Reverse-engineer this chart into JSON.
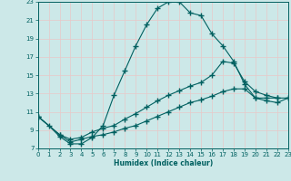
{
  "xlabel": "Humidex (Indice chaleur)",
  "bg_color": "#cce8e8",
  "grid_color": "#f0f0f0",
  "line_color": "#006060",
  "xlim": [
    0,
    23
  ],
  "ylim": [
    7,
    23
  ],
  "xticks": [
    0,
    1,
    2,
    3,
    4,
    5,
    6,
    7,
    8,
    9,
    10,
    11,
    12,
    13,
    14,
    15,
    16,
    17,
    18,
    19,
    20,
    21,
    22,
    23
  ],
  "yticks": [
    7,
    9,
    11,
    13,
    15,
    17,
    19,
    21,
    23
  ],
  "line1_x": [
    0,
    1,
    2,
    3,
    4,
    5,
    6,
    7,
    8,
    9,
    10,
    11,
    12,
    13,
    14,
    15,
    16,
    17,
    18,
    19,
    20,
    21,
    22
  ],
  "line1_y": [
    10.5,
    9.5,
    8.3,
    7.5,
    7.5,
    8.2,
    9.5,
    12.8,
    15.5,
    18.2,
    20.5,
    22.3,
    23.0,
    23.0,
    21.8,
    21.5,
    19.5,
    18.2,
    16.5,
    14.0,
    12.5,
    12.5,
    12.5
  ],
  "line2_x": [
    0,
    2,
    3,
    4,
    5,
    6,
    7,
    8,
    9,
    10,
    11,
    12,
    13,
    14,
    15,
    16,
    17,
    18,
    19,
    20,
    21,
    22,
    23
  ],
  "line2_y": [
    10.5,
    8.5,
    8.0,
    8.2,
    8.8,
    9.2,
    9.5,
    10.2,
    10.8,
    11.5,
    12.2,
    12.8,
    13.3,
    13.8,
    14.2,
    15.0,
    16.5,
    16.3,
    14.3,
    13.2,
    12.8,
    12.5,
    12.5
  ],
  "line3_x": [
    0,
    2,
    3,
    4,
    5,
    6,
    7,
    8,
    9,
    10,
    11,
    12,
    13,
    14,
    15,
    16,
    17,
    18,
    19,
    20,
    21,
    22,
    23
  ],
  "line3_y": [
    10.5,
    8.5,
    7.7,
    8.0,
    8.3,
    8.5,
    8.8,
    9.2,
    9.5,
    10.0,
    10.5,
    11.0,
    11.5,
    12.0,
    12.3,
    12.7,
    13.2,
    13.5,
    13.5,
    12.5,
    12.2,
    12.0,
    12.5
  ]
}
